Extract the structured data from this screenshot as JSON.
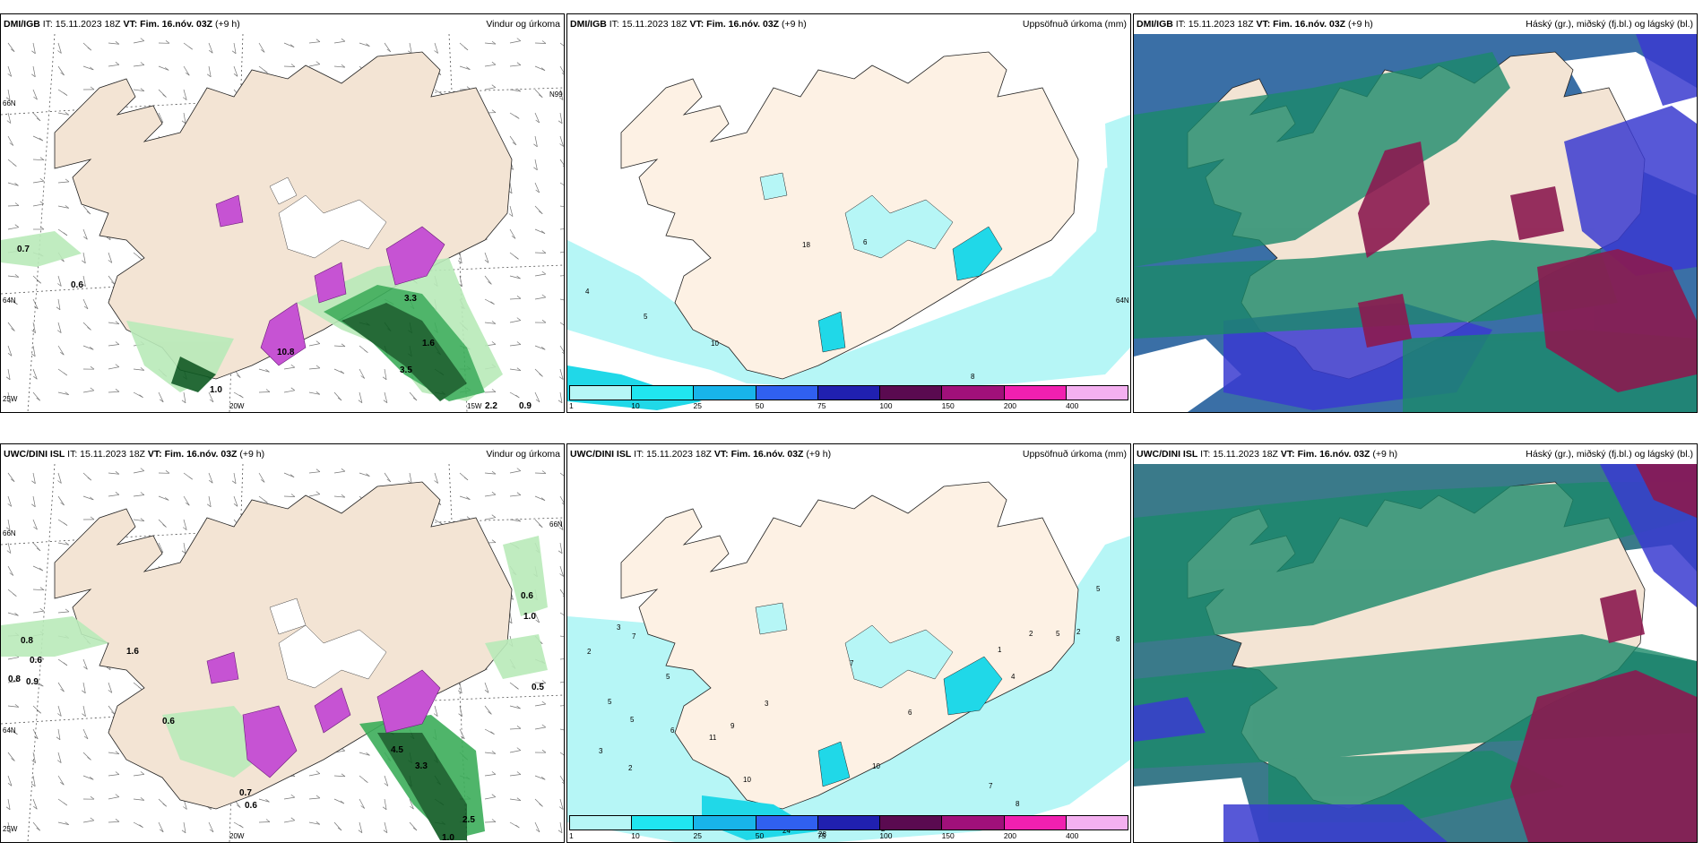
{
  "colors": {
    "land": "#f3e4d4",
    "snow": "#ffffff",
    "precip_green_light": "#b9eab9",
    "precip_green": "#3cae5a",
    "precip_green_dark": "#0e5a22",
    "precip_purple": "#c653d3",
    "accum_1": "#b6f6f6",
    "accum_10": "#20d8e8",
    "cloud_high": "#1b8a6a",
    "cloud_mid": "#8b1a50",
    "cloud_low": "#3a3bd0"
  },
  "panels": [
    {
      "model": "DMI/IGB",
      "it": "IT: 15.11.2023 18Z",
      "vt_label": "VT:",
      "vt": "Fim. 16.nóv. 03Z",
      "lead": "(+9 h)",
      "product": "Vindur og úrkoma",
      "axis_labels": [
        "66N",
        "64N",
        "25W",
        "20W",
        "15W",
        "N99"
      ],
      "values": [
        "0.7",
        "0.6",
        "10.8",
        "1.6",
        "3.5",
        "2.2",
        "0.9",
        "1.0",
        "3.3"
      ]
    },
    {
      "model": "DMI/IGB",
      "it": "IT: 15.11.2023 18Z",
      "vt_label": "VT:",
      "vt": "Fim. 16.nóv. 03Z",
      "lead": "(+9 h)",
      "product": "Uppsöfnuð úrkoma (mm)",
      "values": [
        "4",
        "5",
        "10",
        "18",
        "6",
        "8",
        "64N"
      ],
      "legend": [
        "1",
        "10",
        "25",
        "50",
        "75",
        "100",
        "150",
        "200",
        "400"
      ]
    },
    {
      "model": "DMI/IGB",
      "it": "IT: 15.11.2023 18Z",
      "vt_label": "VT:",
      "vt": "Fim. 16.nóv. 03Z",
      "lead": "(+9 h)",
      "product": "Háský (gr.), miðský (fj.bl.) og lágský (bl.)"
    },
    {
      "model": "UWC/DINI ISL",
      "it": "IT: 15.11.2023 18Z",
      "vt_label": "VT:",
      "vt": "Fim. 16.nóv. 03Z",
      "lead": "(+9 h)",
      "product": "Vindur og úrkoma",
      "axis_labels": [
        "66N",
        "64N",
        "25W",
        "20W",
        "66N"
      ],
      "values": [
        "0.8",
        "0.6",
        "0.9",
        "0.8",
        "0.6",
        "0.6",
        "1.0",
        "0.5",
        "4.5",
        "3.3",
        "2.5",
        "1.0",
        "0.7",
        "0.6",
        "1.6"
      ]
    },
    {
      "model": "UWC/DINI ISL",
      "it": "IT: 15.11.2023 18Z",
      "vt_label": "VT:",
      "vt": "Fim. 16.nóv. 03Z",
      "lead": "(+9 h)",
      "product": "Uppsöfnuð úrkoma (mm)",
      "values": [
        "3",
        "2",
        "5",
        "5",
        "3",
        "2",
        "7",
        "5",
        "6",
        "11",
        "9",
        "10",
        "24",
        "28",
        "2",
        "7",
        "8",
        "2",
        "5",
        "8",
        "1",
        "2",
        "4",
        "5",
        "10",
        "6",
        "3",
        "7"
      ],
      "legend": [
        "1",
        "10",
        "25",
        "50",
        "75",
        "100",
        "150",
        "200",
        "400"
      ]
    },
    {
      "model": "UWC/DINI ISL",
      "it": "IT: 15.11.2023 18Z",
      "vt_label": "VT:",
      "vt": "Fim. 16.nóv. 03Z",
      "lead": "(+9 h)",
      "product": "Háský (gr.), miðský (fj.bl.) og lágský (bl.)"
    }
  ]
}
